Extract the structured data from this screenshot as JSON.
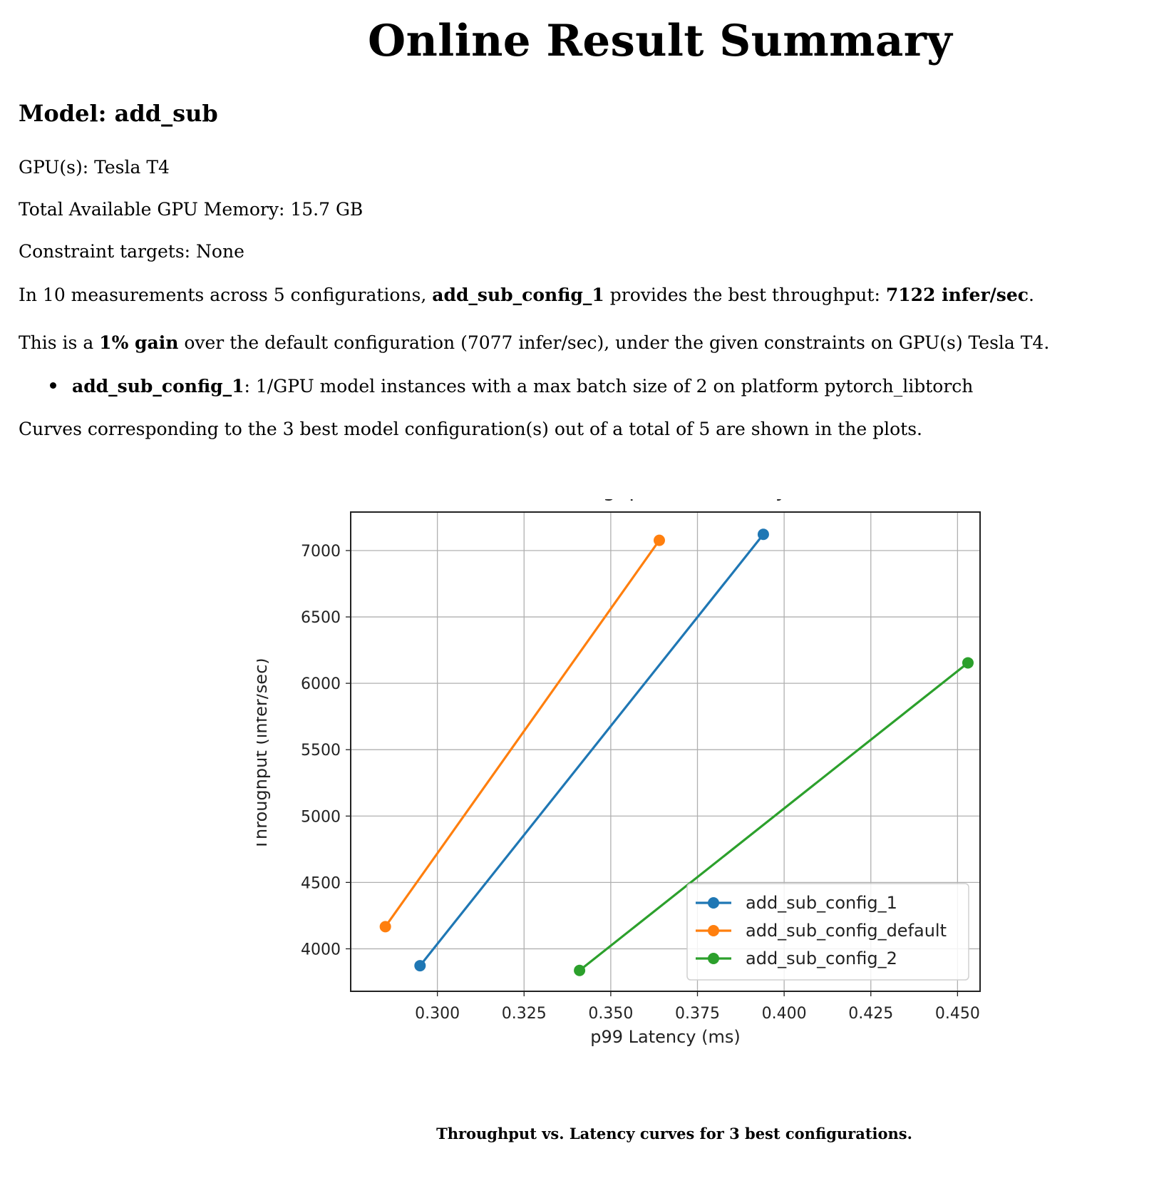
{
  "report": {
    "title": "Online Result Summary",
    "model_heading": "Model: add_sub",
    "gpu_line": "GPU(s): Tesla T4",
    "memory_line": "Total Available GPU Memory: 15.7 GB",
    "constraint_line": "Constraint targets: None",
    "measurements": {
      "prefix": "In 10 measurements across 5 configurations, ",
      "best_config": "add_sub_config_1",
      "middle": " provides the best throughput: ",
      "best_throughput": "7122 infer/sec",
      "suffix": "."
    },
    "gain": {
      "prefix": "This is a ",
      "gain_text": "1% gain",
      "suffix": " over the default configuration (7077 infer/sec), under the given constraints on GPU(s) Tesla T4."
    },
    "bullet": {
      "config": "add_sub_config_1",
      "text": ": 1/GPU model instances with a max batch size of 2 on platform pytorch_libtorch"
    },
    "curves_line": "Curves corresponding to the 3 best model configuration(s) out of a total of 5 are shown in the plots.",
    "caption": "Throughput vs. Latency curves for 3 best configurations."
  },
  "chart_data": {
    "type": "line",
    "title": "Throughput vs. Latency",
    "xlabel": "p99 Latency (ms)",
    "ylabel": "Throughput (infer/sec)",
    "xlim": [
      0.275,
      0.4565
    ],
    "ylim": [
      3680,
      7290
    ],
    "xticks": [
      0.3,
      0.325,
      0.35,
      0.375,
      0.4,
      0.425,
      0.45
    ],
    "xtick_labels": [
      "0.300",
      "0.325",
      "0.350",
      "0.375",
      "0.400",
      "0.425",
      "0.450"
    ],
    "yticks": [
      4000,
      4500,
      5000,
      5500,
      6000,
      6500,
      7000
    ],
    "ytick_labels": [
      "4000",
      "4500",
      "5000",
      "5500",
      "6000",
      "6500",
      "7000"
    ],
    "grid": true,
    "legend_position": "lower-right",
    "series": [
      {
        "name": "add_sub_config_1",
        "color": "#1f77b4",
        "x": [
          0.295,
          0.394
        ],
        "y": [
          3873,
          7122
        ]
      },
      {
        "name": "add_sub_config_default",
        "color": "#ff7f0e",
        "x": [
          0.285,
          0.364
        ],
        "y": [
          4167,
          7077
        ]
      },
      {
        "name": "add_sub_config_2",
        "color": "#2ca02c",
        "x": [
          0.341,
          0.453
        ],
        "y": [
          3837,
          6154
        ]
      }
    ]
  }
}
